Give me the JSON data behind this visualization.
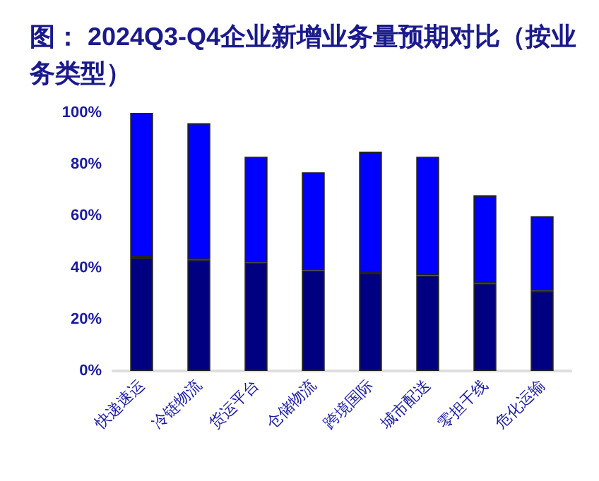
{
  "chart_data": {
    "type": "bar",
    "stacked": true,
    "title": "图： 2024Q3-Q4企业新增业务量预期对比（按业务类型）",
    "categories": [
      "快递速运",
      "冷链物流",
      "货运平台",
      "仓储物流",
      "跨境国际",
      "城市配送",
      "零担干线",
      "危化运输"
    ],
    "series": [
      {
        "color": "#000080",
        "values": [
          44,
          43,
          42,
          39,
          38,
          37,
          34,
          31
        ]
      },
      {
        "color": "#0000ff",
        "values": [
          56,
          53,
          41,
          38,
          47,
          46,
          34,
          29
        ]
      }
    ],
    "ylim": [
      0,
      100
    ],
    "yticks": [
      {
        "value": 0,
        "label": "0%"
      },
      {
        "value": 20,
        "label": "20%"
      },
      {
        "value": 40,
        "label": "40%"
      },
      {
        "value": 60,
        "label": "60%"
      },
      {
        "value": 80,
        "label": "80%"
      },
      {
        "value": 100,
        "label": "100%"
      }
    ],
    "grid": false
  }
}
